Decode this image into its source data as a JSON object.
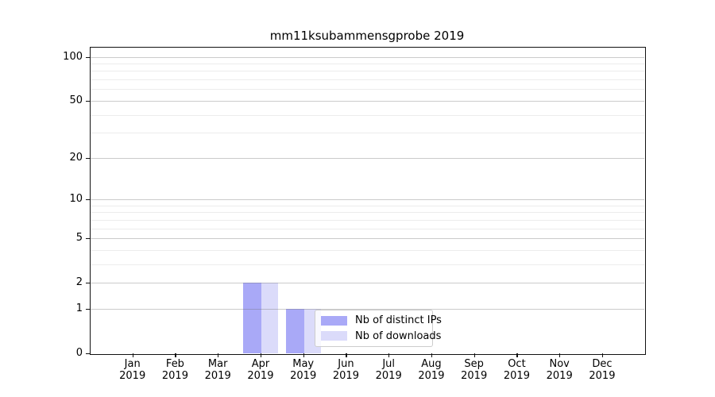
{
  "title": "mm11ksubammensgprobe 2019",
  "colors": {
    "distinct_ips_bar": "#a9a9f7",
    "downloads_bar": "#dbdbfa",
    "axis": "#111111",
    "legend_border": "#cccccc",
    "background": "#ffffff"
  },
  "legend": {
    "items": [
      {
        "label": "Nb of distinct IPs",
        "color": "#a9a9f7"
      },
      {
        "label": "Nb of downloads",
        "color": "#dbdbfa"
      }
    ]
  },
  "chart_data": {
    "type": "bar",
    "title": "mm11ksubammensgprobe 2019",
    "categories": [
      {
        "month": "Jan",
        "year": "2019"
      },
      {
        "month": "Feb",
        "year": "2019"
      },
      {
        "month": "Mar",
        "year": "2019"
      },
      {
        "month": "Apr",
        "year": "2019"
      },
      {
        "month": "May",
        "year": "2019"
      },
      {
        "month": "Jun",
        "year": "2019"
      },
      {
        "month": "Jul",
        "year": "2019"
      },
      {
        "month": "Aug",
        "year": "2019"
      },
      {
        "month": "Sep",
        "year": "2019"
      },
      {
        "month": "Oct",
        "year": "2019"
      },
      {
        "month": "Nov",
        "year": "2019"
      },
      {
        "month": "Dec",
        "year": "2019"
      }
    ],
    "series": [
      {
        "name": "Nb of distinct IPs",
        "color": "#a9a9f7",
        "values": [
          0,
          0,
          0,
          2,
          1,
          0,
          0,
          0,
          0,
          0,
          0,
          0
        ]
      },
      {
        "name": "Nb of downloads",
        "color": "#dbdbfa",
        "values": [
          0,
          0,
          0,
          2,
          1,
          0,
          0,
          0,
          0,
          0,
          0,
          0
        ]
      }
    ],
    "yscale": "log10(1+y)",
    "y_major_ticks": [
      0,
      1,
      2,
      5,
      10,
      20,
      50,
      100
    ],
    "y_minor_ticks": [
      3,
      4,
      6,
      7,
      8,
      9,
      30,
      40,
      60,
      70,
      80,
      90
    ],
    "ylim": [
      0,
      115
    ],
    "grid": "horizontal",
    "legend_position": "lower-center"
  }
}
